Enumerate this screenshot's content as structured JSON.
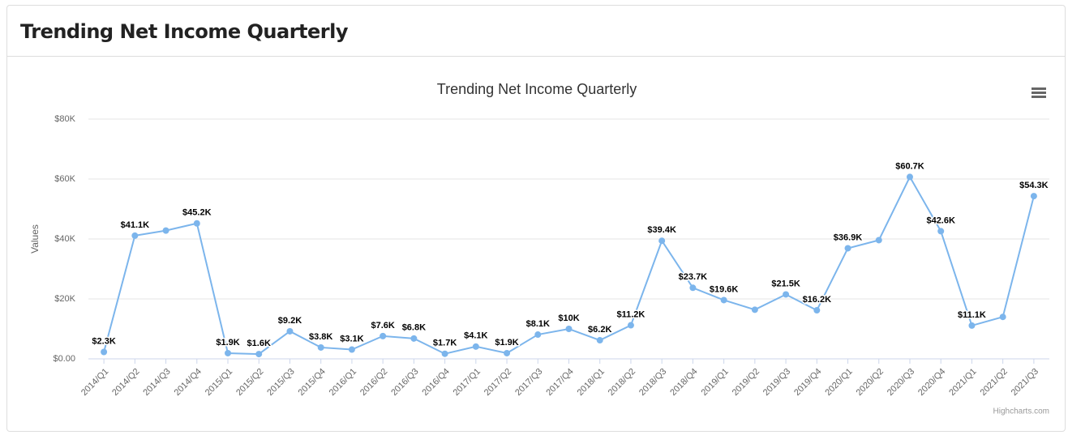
{
  "header": {
    "title": "Trending Net Income Quarterly"
  },
  "chart_data": {
    "type": "line",
    "title": "Trending Net Income Quarterly",
    "y_axis_label": "Values",
    "credits": "Highcharts.com",
    "categories": [
      "2014/Q1",
      "2014/Q2",
      "2014/Q3",
      "2014/Q4",
      "2015/Q1",
      "2015/Q2",
      "2015/Q3",
      "2015/Q4",
      "2016/Q1",
      "2016/Q2",
      "2016/Q3",
      "2016/Q4",
      "2017/Q1",
      "2017/Q2",
      "2017/Q3",
      "2017/Q4",
      "2018/Q1",
      "2018/Q2",
      "2018/Q3",
      "2018/Q4",
      "2019/Q1",
      "2019/Q2",
      "2019/Q3",
      "2019/Q4",
      "2020/Q1",
      "2020/Q2",
      "2020/Q3",
      "2020/Q4",
      "2021/Q1",
      "2021/Q2",
      "2021/Q3"
    ],
    "series": [
      {
        "name": "Values",
        "color": "#7cb5ec",
        "values": [
          2300,
          41100,
          42800,
          45200,
          1900,
          1600,
          9200,
          3800,
          3100,
          7600,
          6800,
          1700,
          4100,
          1900,
          8100,
          10000,
          6200,
          11200,
          39400,
          23700,
          19600,
          16400,
          21500,
          16200,
          36900,
          39600,
          60700,
          42600,
          11100,
          14000,
          54300
        ],
        "value_labels": [
          "$2.3K",
          "$41.1K",
          null,
          "$45.2K",
          "$1.9K",
          "$1.6K",
          "$9.2K",
          "$3.8K",
          "$3.1K",
          "$7.6K",
          "$6.8K",
          "$1.7K",
          "$4.1K",
          "$1.9K",
          "$8.1K",
          "$10K",
          "$6.2K",
          "$11.2K",
          "$39.4K",
          "$23.7K",
          "$19.6K",
          null,
          "$21.5K",
          "$16.2K",
          "$36.9K",
          null,
          "$60.7K",
          "$42.6K",
          "$11.1K",
          null,
          "$54.3K"
        ]
      }
    ],
    "ylim": [
      0,
      80000
    ],
    "yticks": [
      {
        "value": 0,
        "label": "$0.00"
      },
      {
        "value": 20000,
        "label": "$20K"
      },
      {
        "value": 40000,
        "label": "$40K"
      },
      {
        "value": 60000,
        "label": "$60K"
      },
      {
        "value": 80000,
        "label": "$80K"
      }
    ],
    "grid": true
  }
}
